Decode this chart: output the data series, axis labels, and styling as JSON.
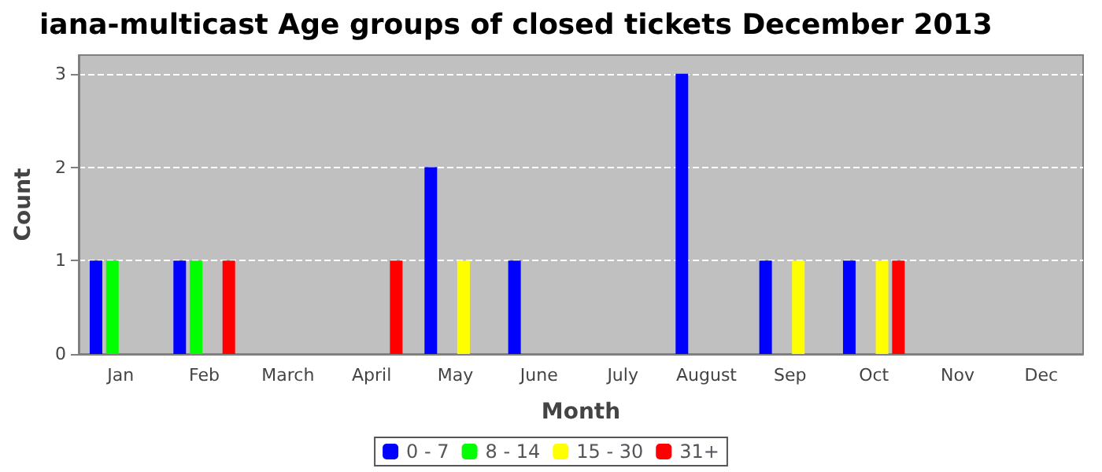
{
  "chart_data": {
    "type": "bar",
    "title": "iana-multicast Age groups of closed tickets December 2013",
    "xlabel": "Month",
    "ylabel": "Count",
    "categories": [
      "Jan",
      "Feb",
      "March",
      "April",
      "May",
      "June",
      "July",
      "August",
      "Sep",
      "Oct",
      "Nov",
      "Dec"
    ],
    "series": [
      {
        "name": "0 - 7",
        "color": "#0000ff",
        "values": [
          1,
          1,
          0,
          0,
          2,
          1,
          0,
          3,
          1,
          1,
          0,
          0
        ]
      },
      {
        "name": "8 - 14",
        "color": "#00ff00",
        "values": [
          1,
          1,
          0,
          0,
          0,
          0,
          0,
          0,
          0,
          0,
          0,
          0
        ]
      },
      {
        "name": "15 - 30",
        "color": "#ffff00",
        "values": [
          0,
          0,
          0,
          0,
          1,
          0,
          0,
          0,
          1,
          1,
          0,
          0
        ]
      },
      {
        "name": "31+",
        "color": "#ff0000",
        "values": [
          0,
          1,
          0,
          1,
          0,
          0,
          0,
          0,
          0,
          1,
          0,
          0
        ]
      }
    ],
    "ylim": [
      0,
      3.2
    ],
    "yticks": [
      0,
      1,
      2,
      3
    ],
    "grid": "y",
    "legend": "bottom"
  }
}
